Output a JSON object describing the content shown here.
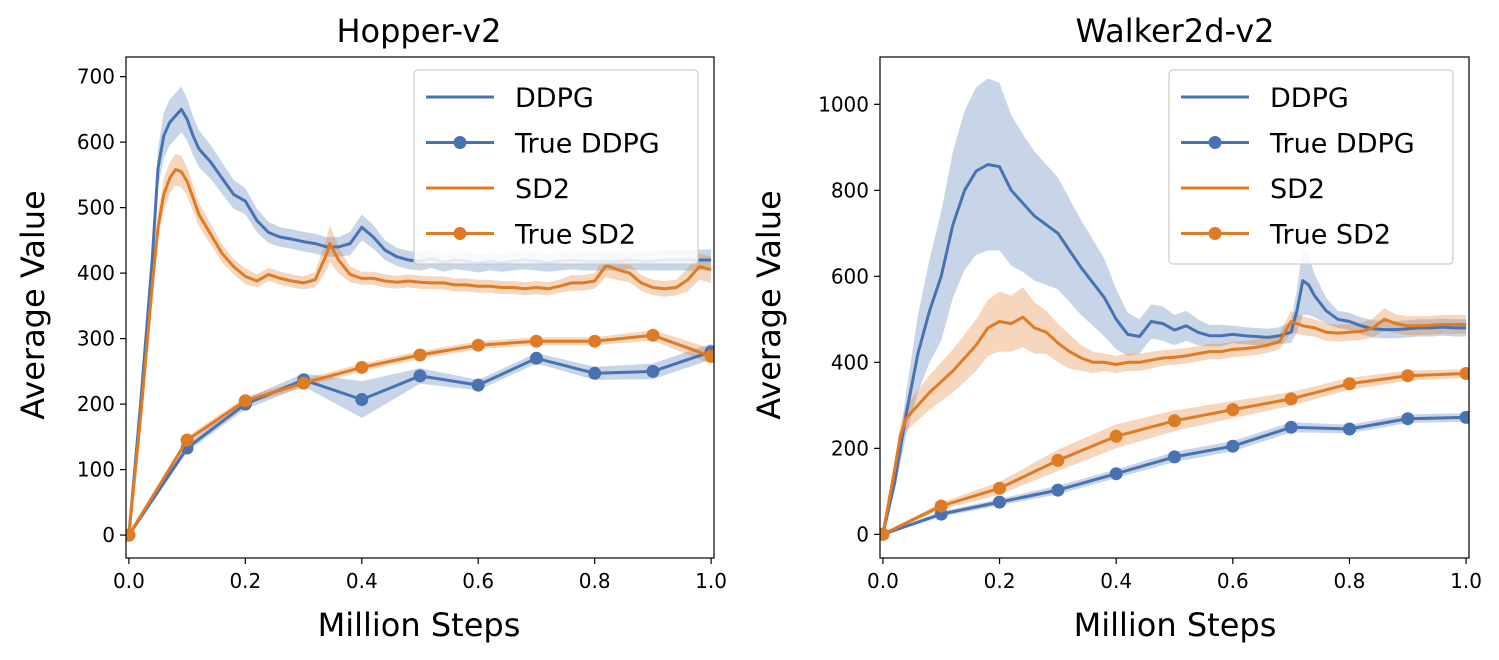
{
  "colors": {
    "blue": "#4873b2",
    "orange": "#e07b25"
  },
  "chart_data": [
    {
      "type": "line",
      "title": "Hopper-v2",
      "xlabel": "Million Steps",
      "ylabel": "Average Value",
      "xlim": [
        -0.005,
        1.005
      ],
      "ylim": [
        -35,
        730
      ],
      "xticks": [
        0.0,
        0.2,
        0.4,
        0.6,
        0.8,
        1.0
      ],
      "xtick_labels": [
        "0.0",
        "0.2",
        "0.4",
        "0.6",
        "0.8",
        "1.0"
      ],
      "yticks": [
        0,
        100,
        200,
        300,
        400,
        500,
        600,
        700
      ],
      "ytick_labels": [
        "0",
        "100",
        "200",
        "300",
        "400",
        "500",
        "600",
        "700"
      ],
      "legend_position": "top-right",
      "series": [
        {
          "name": "DDPG",
          "color_key": "blue",
          "markers": false,
          "x": [
            0,
            0.02,
            0.04,
            0.05,
            0.06,
            0.07,
            0.08,
            0.09,
            0.1,
            0.11,
            0.12,
            0.14,
            0.16,
            0.18,
            0.2,
            0.22,
            0.24,
            0.26,
            0.28,
            0.3,
            0.32,
            0.34,
            0.36,
            0.38,
            0.4,
            0.42,
            0.44,
            0.46,
            0.48,
            0.5,
            0.52,
            0.54,
            0.56,
            0.58,
            0.6,
            0.62,
            0.64,
            0.66,
            0.68,
            0.7,
            0.72,
            0.74,
            0.76,
            0.78,
            0.8,
            0.82,
            0.84,
            0.86,
            0.88,
            0.9,
            0.92,
            0.94,
            0.96,
            0.98,
            1.0
          ],
          "y": [
            0,
            200,
            420,
            560,
            610,
            630,
            640,
            650,
            635,
            610,
            590,
            570,
            545,
            520,
            510,
            480,
            462,
            455,
            452,
            448,
            445,
            440,
            440,
            445,
            470,
            455,
            435,
            425,
            420,
            418,
            422,
            416,
            420,
            418,
            415,
            418,
            416,
            418,
            420,
            418,
            416,
            418,
            420,
            418,
            418,
            418,
            418,
            420,
            418,
            418,
            420,
            420,
            420,
            420,
            420
          ],
          "band": [
            0,
            10,
            20,
            30,
            35,
            35,
            35,
            35,
            32,
            30,
            28,
            26,
            24,
            22,
            20,
            18,
            16,
            15,
            15,
            15,
            15,
            15,
            15,
            18,
            20,
            18,
            15,
            14,
            14,
            14,
            14,
            14,
            14,
            14,
            14,
            14,
            14,
            14,
            14,
            14,
            14,
            14,
            14,
            14,
            14,
            14,
            14,
            14,
            14,
            14,
            16,
            16,
            16,
            16,
            16
          ]
        },
        {
          "name": "True DDPG",
          "color_key": "blue",
          "markers": true,
          "x": [
            0,
            0.1,
            0.2,
            0.3,
            0.4,
            0.5,
            0.6,
            0.7,
            0.8,
            0.9,
            1.0
          ],
          "y": [
            0,
            133,
            200,
            237,
            207,
            243,
            229,
            270,
            247,
            250,
            280
          ],
          "band": [
            3,
            6,
            8,
            10,
            28,
            12,
            8,
            8,
            10,
            12,
            12
          ]
        },
        {
          "name": "SD2",
          "color_key": "orange",
          "markers": false,
          "x": [
            0,
            0.02,
            0.04,
            0.05,
            0.06,
            0.07,
            0.08,
            0.09,
            0.1,
            0.11,
            0.12,
            0.14,
            0.16,
            0.18,
            0.2,
            0.22,
            0.24,
            0.26,
            0.28,
            0.3,
            0.32,
            0.34,
            0.345,
            0.36,
            0.38,
            0.4,
            0.42,
            0.44,
            0.46,
            0.48,
            0.5,
            0.52,
            0.54,
            0.56,
            0.58,
            0.6,
            0.62,
            0.64,
            0.66,
            0.68,
            0.7,
            0.72,
            0.74,
            0.76,
            0.78,
            0.8,
            0.82,
            0.84,
            0.86,
            0.88,
            0.9,
            0.92,
            0.94,
            0.96,
            0.98,
            1.0
          ],
          "y": [
            0,
            180,
            380,
            470,
            520,
            545,
            558,
            555,
            540,
            515,
            490,
            460,
            430,
            410,
            395,
            388,
            398,
            392,
            388,
            385,
            390,
            430,
            445,
            420,
            398,
            392,
            392,
            388,
            386,
            388,
            386,
            385,
            385,
            382,
            382,
            380,
            380,
            378,
            378,
            376,
            378,
            376,
            380,
            385,
            385,
            388,
            412,
            405,
            400,
            385,
            378,
            376,
            378,
            390,
            410,
            405
          ],
          "band": [
            0,
            10,
            18,
            22,
            24,
            24,
            24,
            24,
            22,
            20,
            18,
            16,
            14,
            12,
            12,
            10,
            10,
            10,
            10,
            10,
            12,
            25,
            28,
            20,
            12,
            10,
            10,
            10,
            10,
            10,
            10,
            10,
            10,
            10,
            10,
            10,
            10,
            10,
            10,
            10,
            10,
            10,
            10,
            12,
            12,
            12,
            18,
            16,
            14,
            12,
            12,
            12,
            12,
            18,
            20,
            20
          ]
        },
        {
          "name": "True SD2",
          "color_key": "orange",
          "markers": true,
          "x": [
            0,
            0.1,
            0.2,
            0.3,
            0.4,
            0.5,
            0.6,
            0.7,
            0.8,
            0.9,
            1.0
          ],
          "y": [
            0,
            145,
            205,
            232,
            256,
            275,
            290,
            296,
            296,
            305,
            273
          ],
          "band": [
            3,
            5,
            6,
            6,
            6,
            6,
            6,
            6,
            6,
            8,
            12
          ]
        }
      ]
    },
    {
      "type": "line",
      "title": "Walker2d-v2",
      "xlabel": "Million Steps",
      "ylabel": "Average Value",
      "xlim": [
        -0.005,
        1.005
      ],
      "ylim": [
        -55,
        1110
      ],
      "xticks": [
        0.0,
        0.2,
        0.4,
        0.6,
        0.8,
        1.0
      ],
      "xtick_labels": [
        "0.0",
        "0.2",
        "0.4",
        "0.6",
        "0.8",
        "1.0"
      ],
      "yticks": [
        0,
        200,
        400,
        600,
        800,
        1000
      ],
      "ytick_labels": [
        "0",
        "200",
        "400",
        "600",
        "800",
        "1000"
      ],
      "legend_position": "top-right",
      "series": [
        {
          "name": "DDPG",
          "color_key": "blue",
          "markers": false,
          "x": [
            0,
            0.02,
            0.04,
            0.06,
            0.08,
            0.1,
            0.12,
            0.14,
            0.16,
            0.18,
            0.2,
            0.22,
            0.24,
            0.26,
            0.28,
            0.3,
            0.32,
            0.34,
            0.36,
            0.38,
            0.4,
            0.42,
            0.44,
            0.46,
            0.48,
            0.5,
            0.52,
            0.54,
            0.56,
            0.58,
            0.6,
            0.62,
            0.64,
            0.66,
            0.68,
            0.7,
            0.71,
            0.72,
            0.73,
            0.74,
            0.76,
            0.78,
            0.8,
            0.82,
            0.84,
            0.86,
            0.88,
            0.9,
            0.92,
            0.94,
            0.96,
            0.98,
            1.0
          ],
          "y": [
            0,
            120,
            280,
            420,
            520,
            600,
            720,
            800,
            845,
            860,
            855,
            800,
            770,
            740,
            720,
            700,
            660,
            620,
            585,
            550,
            500,
            465,
            460,
            495,
            490,
            475,
            485,
            470,
            462,
            462,
            465,
            462,
            460,
            458,
            462,
            470,
            520,
            590,
            580,
            555,
            520,
            500,
            495,
            485,
            478,
            476,
            476,
            478,
            480,
            480,
            482,
            480,
            480
          ],
          "band": [
            0,
            20,
            50,
            90,
            120,
            150,
            170,
            185,
            195,
            200,
            195,
            175,
            160,
            150,
            140,
            130,
            120,
            110,
            100,
            90,
            70,
            50,
            40,
            40,
            40,
            35,
            35,
            30,
            25,
            25,
            20,
            20,
            20,
            20,
            20,
            25,
            50,
            80,
            70,
            50,
            30,
            20,
            20,
            20,
            20,
            20,
            20,
            20,
            20,
            20,
            20,
            20,
            20
          ]
        },
        {
          "name": "True DDPG",
          "color_key": "blue",
          "markers": true,
          "x": [
            0,
            0.1,
            0.2,
            0.3,
            0.4,
            0.5,
            0.6,
            0.7,
            0.8,
            0.9,
            1.0
          ],
          "y": [
            0,
            47,
            75,
            103,
            141,
            180,
            205,
            249,
            245,
            269,
            272
          ],
          "band": [
            2,
            6,
            8,
            10,
            10,
            12,
            12,
            12,
            10,
            10,
            10
          ]
        },
        {
          "name": "SD2",
          "color_key": "orange",
          "markers": false,
          "x": [
            0,
            0.02,
            0.03,
            0.04,
            0.06,
            0.08,
            0.1,
            0.12,
            0.14,
            0.16,
            0.18,
            0.2,
            0.22,
            0.24,
            0.26,
            0.28,
            0.3,
            0.32,
            0.34,
            0.36,
            0.38,
            0.4,
            0.42,
            0.44,
            0.46,
            0.48,
            0.5,
            0.52,
            0.54,
            0.56,
            0.58,
            0.6,
            0.62,
            0.64,
            0.66,
            0.68,
            0.7,
            0.72,
            0.74,
            0.76,
            0.78,
            0.8,
            0.82,
            0.84,
            0.86,
            0.88,
            0.9,
            0.92,
            0.94,
            0.96,
            0.98,
            1.0
          ],
          "y": [
            0,
            150,
            230,
            270,
            300,
            330,
            355,
            380,
            410,
            440,
            480,
            495,
            490,
            505,
            480,
            470,
            445,
            425,
            410,
            400,
            400,
            395,
            400,
            400,
            405,
            410,
            412,
            415,
            420,
            425,
            425,
            430,
            432,
            435,
            440,
            448,
            495,
            485,
            480,
            470,
            468,
            470,
            472,
            480,
            500,
            490,
            485,
            485,
            486,
            488,
            488,
            488
          ],
          "band": [
            0,
            15,
            25,
            30,
            35,
            40,
            45,
            50,
            55,
            60,
            65,
            70,
            65,
            70,
            60,
            50,
            45,
            40,
            30,
            25,
            20,
            20,
            20,
            20,
            20,
            18,
            18,
            18,
            18,
            18,
            18,
            18,
            18,
            18,
            18,
            18,
            25,
            22,
            20,
            20,
            20,
            20,
            20,
            22,
            26,
            22,
            22,
            22,
            22,
            22,
            22,
            22
          ]
        },
        {
          "name": "True SD2",
          "color_key": "orange",
          "markers": true,
          "x": [
            0,
            0.1,
            0.2,
            0.3,
            0.4,
            0.5,
            0.6,
            0.7,
            0.8,
            0.9,
            1.0
          ],
          "y": [
            0,
            66,
            107,
            172,
            228,
            264,
            290,
            315,
            350,
            369,
            374
          ],
          "band": [
            3,
            8,
            15,
            25,
            28,
            24,
            20,
            16,
            14,
            12,
            10
          ]
        }
      ]
    }
  ]
}
